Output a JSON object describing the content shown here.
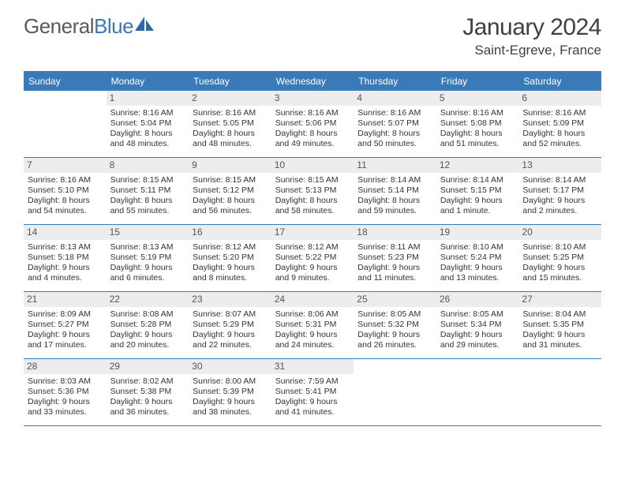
{
  "brand": {
    "part1": "General",
    "part2": "Blue"
  },
  "title": "January 2024",
  "location": "Saint-Egreve, France",
  "accent_color": "#3a7ab8",
  "daynum_bg": "#ededed",
  "day_names": [
    "Sunday",
    "Monday",
    "Tuesday",
    "Wednesday",
    "Thursday",
    "Friday",
    "Saturday"
  ],
  "weeks": [
    [
      {
        "n": "",
        "sr": "",
        "ss": "",
        "d1": "",
        "d2": ""
      },
      {
        "n": "1",
        "sr": "Sunrise: 8:16 AM",
        "ss": "Sunset: 5:04 PM",
        "d1": "Daylight: 8 hours",
        "d2": "and 48 minutes."
      },
      {
        "n": "2",
        "sr": "Sunrise: 8:16 AM",
        "ss": "Sunset: 5:05 PM",
        "d1": "Daylight: 8 hours",
        "d2": "and 48 minutes."
      },
      {
        "n": "3",
        "sr": "Sunrise: 8:16 AM",
        "ss": "Sunset: 5:06 PM",
        "d1": "Daylight: 8 hours",
        "d2": "and 49 minutes."
      },
      {
        "n": "4",
        "sr": "Sunrise: 8:16 AM",
        "ss": "Sunset: 5:07 PM",
        "d1": "Daylight: 8 hours",
        "d2": "and 50 minutes."
      },
      {
        "n": "5",
        "sr": "Sunrise: 8:16 AM",
        "ss": "Sunset: 5:08 PM",
        "d1": "Daylight: 8 hours",
        "d2": "and 51 minutes."
      },
      {
        "n": "6",
        "sr": "Sunrise: 8:16 AM",
        "ss": "Sunset: 5:09 PM",
        "d1": "Daylight: 8 hours",
        "d2": "and 52 minutes."
      }
    ],
    [
      {
        "n": "7",
        "sr": "Sunrise: 8:16 AM",
        "ss": "Sunset: 5:10 PM",
        "d1": "Daylight: 8 hours",
        "d2": "and 54 minutes."
      },
      {
        "n": "8",
        "sr": "Sunrise: 8:15 AM",
        "ss": "Sunset: 5:11 PM",
        "d1": "Daylight: 8 hours",
        "d2": "and 55 minutes."
      },
      {
        "n": "9",
        "sr": "Sunrise: 8:15 AM",
        "ss": "Sunset: 5:12 PM",
        "d1": "Daylight: 8 hours",
        "d2": "and 56 minutes."
      },
      {
        "n": "10",
        "sr": "Sunrise: 8:15 AM",
        "ss": "Sunset: 5:13 PM",
        "d1": "Daylight: 8 hours",
        "d2": "and 58 minutes."
      },
      {
        "n": "11",
        "sr": "Sunrise: 8:14 AM",
        "ss": "Sunset: 5:14 PM",
        "d1": "Daylight: 8 hours",
        "d2": "and 59 minutes."
      },
      {
        "n": "12",
        "sr": "Sunrise: 8:14 AM",
        "ss": "Sunset: 5:15 PM",
        "d1": "Daylight: 9 hours",
        "d2": "and 1 minute."
      },
      {
        "n": "13",
        "sr": "Sunrise: 8:14 AM",
        "ss": "Sunset: 5:17 PM",
        "d1": "Daylight: 9 hours",
        "d2": "and 2 minutes."
      }
    ],
    [
      {
        "n": "14",
        "sr": "Sunrise: 8:13 AM",
        "ss": "Sunset: 5:18 PM",
        "d1": "Daylight: 9 hours",
        "d2": "and 4 minutes."
      },
      {
        "n": "15",
        "sr": "Sunrise: 8:13 AM",
        "ss": "Sunset: 5:19 PM",
        "d1": "Daylight: 9 hours",
        "d2": "and 6 minutes."
      },
      {
        "n": "16",
        "sr": "Sunrise: 8:12 AM",
        "ss": "Sunset: 5:20 PM",
        "d1": "Daylight: 9 hours",
        "d2": "and 8 minutes."
      },
      {
        "n": "17",
        "sr": "Sunrise: 8:12 AM",
        "ss": "Sunset: 5:22 PM",
        "d1": "Daylight: 9 hours",
        "d2": "and 9 minutes."
      },
      {
        "n": "18",
        "sr": "Sunrise: 8:11 AM",
        "ss": "Sunset: 5:23 PM",
        "d1": "Daylight: 9 hours",
        "d2": "and 11 minutes."
      },
      {
        "n": "19",
        "sr": "Sunrise: 8:10 AM",
        "ss": "Sunset: 5:24 PM",
        "d1": "Daylight: 9 hours",
        "d2": "and 13 minutes."
      },
      {
        "n": "20",
        "sr": "Sunrise: 8:10 AM",
        "ss": "Sunset: 5:25 PM",
        "d1": "Daylight: 9 hours",
        "d2": "and 15 minutes."
      }
    ],
    [
      {
        "n": "21",
        "sr": "Sunrise: 8:09 AM",
        "ss": "Sunset: 5:27 PM",
        "d1": "Daylight: 9 hours",
        "d2": "and 17 minutes."
      },
      {
        "n": "22",
        "sr": "Sunrise: 8:08 AM",
        "ss": "Sunset: 5:28 PM",
        "d1": "Daylight: 9 hours",
        "d2": "and 20 minutes."
      },
      {
        "n": "23",
        "sr": "Sunrise: 8:07 AM",
        "ss": "Sunset: 5:29 PM",
        "d1": "Daylight: 9 hours",
        "d2": "and 22 minutes."
      },
      {
        "n": "24",
        "sr": "Sunrise: 8:06 AM",
        "ss": "Sunset: 5:31 PM",
        "d1": "Daylight: 9 hours",
        "d2": "and 24 minutes."
      },
      {
        "n": "25",
        "sr": "Sunrise: 8:05 AM",
        "ss": "Sunset: 5:32 PM",
        "d1": "Daylight: 9 hours",
        "d2": "and 26 minutes."
      },
      {
        "n": "26",
        "sr": "Sunrise: 8:05 AM",
        "ss": "Sunset: 5:34 PM",
        "d1": "Daylight: 9 hours",
        "d2": "and 29 minutes."
      },
      {
        "n": "27",
        "sr": "Sunrise: 8:04 AM",
        "ss": "Sunset: 5:35 PM",
        "d1": "Daylight: 9 hours",
        "d2": "and 31 minutes."
      }
    ],
    [
      {
        "n": "28",
        "sr": "Sunrise: 8:03 AM",
        "ss": "Sunset: 5:36 PM",
        "d1": "Daylight: 9 hours",
        "d2": "and 33 minutes."
      },
      {
        "n": "29",
        "sr": "Sunrise: 8:02 AM",
        "ss": "Sunset: 5:38 PM",
        "d1": "Daylight: 9 hours",
        "d2": "and 36 minutes."
      },
      {
        "n": "30",
        "sr": "Sunrise: 8:00 AM",
        "ss": "Sunset: 5:39 PM",
        "d1": "Daylight: 9 hours",
        "d2": "and 38 minutes."
      },
      {
        "n": "31",
        "sr": "Sunrise: 7:59 AM",
        "ss": "Sunset: 5:41 PM",
        "d1": "Daylight: 9 hours",
        "d2": "and 41 minutes."
      },
      {
        "n": "",
        "sr": "",
        "ss": "",
        "d1": "",
        "d2": ""
      },
      {
        "n": "",
        "sr": "",
        "ss": "",
        "d1": "",
        "d2": ""
      },
      {
        "n": "",
        "sr": "",
        "ss": "",
        "d1": "",
        "d2": ""
      }
    ]
  ]
}
